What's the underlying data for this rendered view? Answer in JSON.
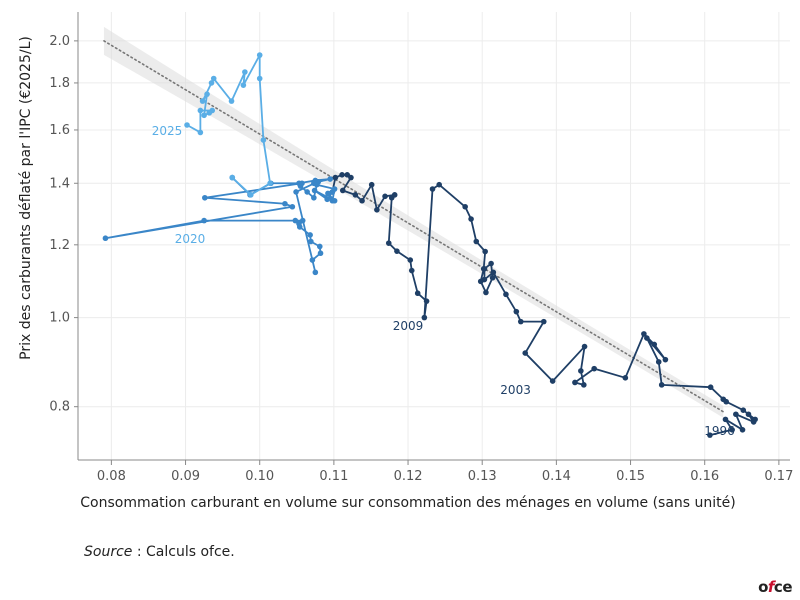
{
  "chart_data": {
    "type": "scatter",
    "xlabel": "Consommation carburant en volume sur consommation des ménages en volume (sans unité)",
    "ylabel": "Prix des carburants déflaté par l'IPC (€2025/L)",
    "xlim": [
      0.0755,
      0.1715
    ],
    "ylim": [
      0.7,
      2.15
    ],
    "y_scale": "log",
    "x_ticks": [
      0.08,
      0.09,
      0.1,
      0.11,
      0.12,
      0.13,
      0.14,
      0.15,
      0.16,
      0.17
    ],
    "x_tick_labels": [
      "0.08",
      "0.09",
      "0.10",
      "0.11",
      "0.12",
      "0.13",
      "0.14",
      "0.15",
      "0.16",
      "0.17"
    ],
    "y_ticks": [
      0.8,
      1.0,
      1.2,
      1.4,
      1.6,
      1.8,
      2.0
    ],
    "y_tick_labels": [
      "0.8",
      "1.0",
      "1.2",
      "1.4",
      "1.6",
      "1.8",
      "2.0"
    ],
    "grid": true,
    "trend": {
      "x": [
        0.079,
        0.1625
      ],
      "y": [
        2.0,
        0.79
      ],
      "style": "dotted",
      "band": true
    },
    "series": [
      {
        "color": "#1f3f66",
        "x": [
          0.1607,
          0.1637,
          0.1628,
          0.1651,
          0.1642,
          0.1666,
          0.1659,
          0.1668,
          0.1652,
          0.1629,
          0.1625,
          0.1608,
          0.1542,
          0.1538,
          0.1522,
          0.1547,
          0.1532,
          0.1518,
          0.1493,
          0.1451,
          0.1425,
          0.1437,
          0.1433,
          0.1438,
          0.1395,
          0.1358,
          0.1383,
          0.1352,
          0.1346,
          0.1332,
          0.1315,
          0.1303,
          0.1303,
          0.1312,
          0.1314,
          0.1305,
          0.1298,
          0.1302,
          0.1304,
          0.1292,
          0.1285,
          0.1277,
          0.1242,
          0.1233,
          0.1222,
          0.1225,
          0.1213,
          0.1205,
          0.1203,
          0.1185,
          0.1174,
          0.1178,
          0.1182,
          0.1169,
          0.1158,
          0.1151,
          0.1138,
          0.1129,
          0.1112,
          0.1123,
          0.1118,
          0.1111,
          0.1102,
          0.1098
        ],
        "y": [
          0.745,
          0.755,
          0.775,
          0.755,
          0.785,
          0.77,
          0.785,
          0.775,
          0.793,
          0.81,
          0.815,
          0.84,
          0.845,
          0.895,
          0.95,
          0.9,
          0.935,
          0.96,
          0.86,
          0.88,
          0.85,
          0.845,
          0.875,
          0.93,
          0.853,
          0.915,
          0.99,
          0.99,
          1.015,
          1.06,
          1.12,
          1.1,
          1.13,
          1.145,
          1.105,
          1.065,
          1.095,
          1.13,
          1.18,
          1.21,
          1.28,
          1.32,
          1.395,
          1.38,
          1.0,
          1.042,
          1.063,
          1.125,
          1.155,
          1.181,
          1.205,
          1.35,
          1.36,
          1.355,
          1.31,
          1.395,
          1.34,
          1.36,
          1.375,
          1.42,
          1.43,
          1.43,
          1.42,
          1.37
        ]
      },
      {
        "color": "#3a86c8",
        "x": [
          0.1098,
          0.1091,
          0.1074,
          0.1101,
          0.1092,
          0.1098,
          0.1101,
          0.1077,
          0.1073,
          0.1064,
          0.1055,
          0.1053,
          0.1075,
          0.1095,
          0.1079,
          0.1073,
          0.1078,
          0.1049,
          0.1075,
          0.1071,
          0.1082,
          0.1081,
          0.1069,
          0.1068,
          0.1054,
          0.1053,
          0.1048,
          0.1058,
          0.0925,
          0.0792,
          0.1044,
          0.1034,
          0.0926,
          0.1057,
          0.1015,
          0.0987,
          0.0963
        ],
        "y": [
          1.37,
          1.345,
          1.375,
          1.34,
          1.365,
          1.34,
          1.38,
          1.395,
          1.35,
          1.37,
          1.39,
          1.4,
          1.41,
          1.415,
          1.405,
          1.4,
          1.405,
          1.37,
          1.12,
          1.155,
          1.175,
          1.195,
          1.21,
          1.23,
          1.255,
          1.265,
          1.275,
          1.275,
          1.275,
          1.22,
          1.32,
          1.33,
          1.35,
          1.4,
          1.4,
          1.36,
          1.42
        ]
      },
      {
        "color": "#5aaee6",
        "x": [
          0.0963,
          0.0988,
          0.1014,
          0.1005,
          0.1,
          0.1,
          0.0978,
          0.098,
          0.0962,
          0.0938,
          0.0935,
          0.0923,
          0.0929,
          0.0925,
          0.0932,
          0.0936,
          0.092,
          0.092,
          0.0902
        ],
        "y": [
          1.42,
          1.36,
          1.4,
          1.56,
          1.82,
          1.93,
          1.79,
          1.85,
          1.72,
          1.82,
          1.8,
          1.72,
          1.75,
          1.66,
          1.67,
          1.68,
          1.68,
          1.59,
          1.62
        ]
      }
    ],
    "annotations": [
      {
        "text": "1996",
        "x": 0.162,
        "y": 0.745,
        "color": "#1f3f66"
      },
      {
        "text": "2003",
        "x": 0.1345,
        "y": 0.826,
        "color": "#1f3f66"
      },
      {
        "text": "2009",
        "x": 0.12,
        "y": 0.97,
        "color": "#1f3f66"
      },
      {
        "text": "2020",
        "x": 0.0906,
        "y": 1.205,
        "color": "#5aaee6"
      },
      {
        "text": "2025",
        "x": 0.0875,
        "y": 1.58,
        "color": "#5aaee6"
      }
    ]
  },
  "source": {
    "label": "Source",
    "text": " : Calculs ofce."
  },
  "logo": {
    "prefix": "o",
    "f": "f",
    "suffix": "ce"
  }
}
